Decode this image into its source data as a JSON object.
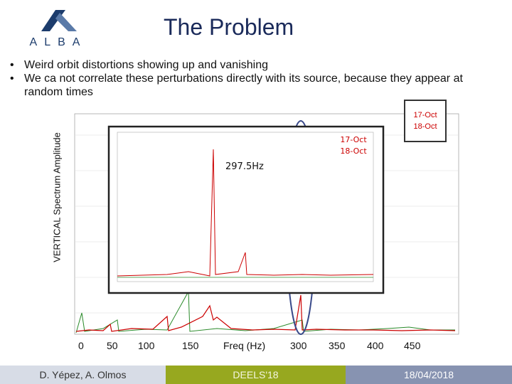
{
  "header": {
    "title": "The Problem",
    "logo_text": "ALBA"
  },
  "bullets": [
    {
      "marker": "•",
      "text": "Weird orbit distortions showing up and vanishing"
    },
    {
      "marker": "•",
      "text": "We ca not correlate these perturbations directly with its source, because they appear at random times"
    }
  ],
  "chart": {
    "ylabel": "VERTICAL Spectrum Amplitude",
    "xlabel": "Freq (Hz)",
    "xticks": [
      "0",
      "50",
      "100",
      "150",
      "300",
      "350",
      "400",
      "450"
    ],
    "peak_label": "297.5Hz",
    "inset_legend": [
      "17-Oct",
      "18-Oct"
    ],
    "outer_legend": [
      "17-Oct",
      "18-Oct"
    ],
    "colors": {
      "series_a": "#cc0000",
      "series_b": "#2a8a2a",
      "highlight": "#3a4a8a"
    }
  },
  "footer": {
    "authors": "D. Yépez, A. Olmos",
    "event": "DEELS'18",
    "date": "18/04/2018",
    "colors": {
      "left": "#d7dce6",
      "middle": "#97a81f",
      "right": "#8793b1"
    }
  }
}
